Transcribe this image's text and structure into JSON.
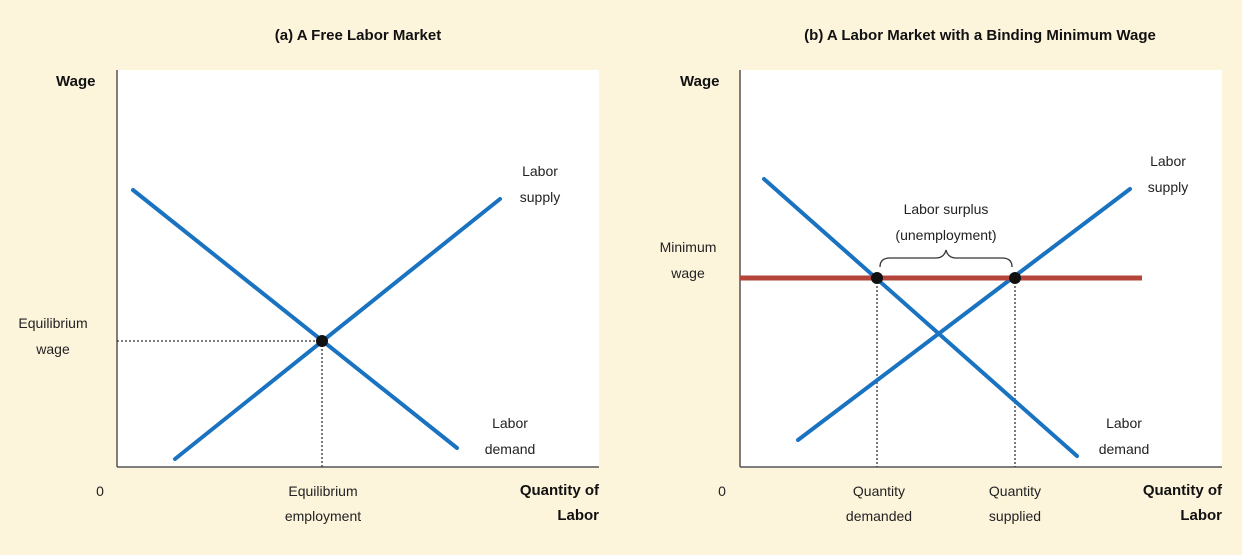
{
  "colors": {
    "background": "#fdf4dc",
    "plot_area": "#ffffff",
    "curve": "#1a73c0",
    "minimum_wage_line": "#b5453a",
    "axis": "#555555",
    "point": "#111111"
  },
  "panel_a": {
    "title": "(a) A Free Labor Market",
    "y_axis_label": "Wage",
    "x_axis_label_line1": "Quantity of",
    "x_axis_label_line2": "Labor",
    "origin_label": "0",
    "supply_label_line1": "Labor",
    "supply_label_line2": "supply",
    "demand_label_line1": "Labor",
    "demand_label_line2": "demand",
    "equilibrium_wage_line1": "Equilibrium",
    "equilibrium_wage_line2": "wage",
    "equilibrium_employment_line1": "Equilibrium",
    "equilibrium_employment_line2": "employment"
  },
  "panel_b": {
    "title": "(b) A Labor Market with a Binding Minimum Wage",
    "y_axis_label": "Wage",
    "x_axis_label_line1": "Quantity of",
    "x_axis_label_line2": "Labor",
    "origin_label": "0",
    "supply_label_line1": "Labor",
    "supply_label_line2": "supply",
    "demand_label_line1": "Labor",
    "demand_label_line2": "demand",
    "minimum_wage_line1": "Minimum",
    "minimum_wage_line2": "wage",
    "surplus_label_line1": "Labor surplus",
    "surplus_label_line2": "(unemployment)",
    "quantity_demanded_line1": "Quantity",
    "quantity_demanded_line2": "demanded",
    "quantity_supplied_line1": "Quantity",
    "quantity_supplied_line2": "supplied"
  }
}
